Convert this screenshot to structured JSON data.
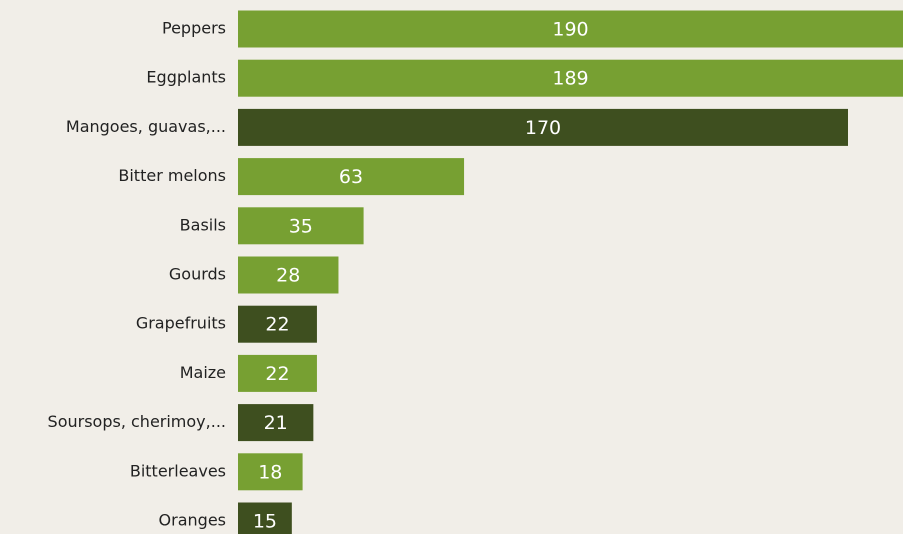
{
  "chart_data": {
    "type": "bar",
    "orientation": "horizontal",
    "categories": [
      "Peppers",
      "Eggplants",
      "Mangoes, guavas,...",
      "Bitter melons",
      "Basils",
      "Gourds",
      "Grapefruits",
      "Maize",
      "Soursops, cherimoy,...",
      "Bitterleaves",
      "Oranges"
    ],
    "values": [
      190,
      189,
      170,
      63,
      35,
      28,
      22,
      22,
      21,
      18,
      15
    ],
    "colors": [
      "#77a032",
      "#77a032",
      "#3e4f1f",
      "#77a032",
      "#77a032",
      "#77a032",
      "#3e4f1f",
      "#77a032",
      "#3e4f1f",
      "#77a032",
      "#3e4f1f"
    ]
  }
}
